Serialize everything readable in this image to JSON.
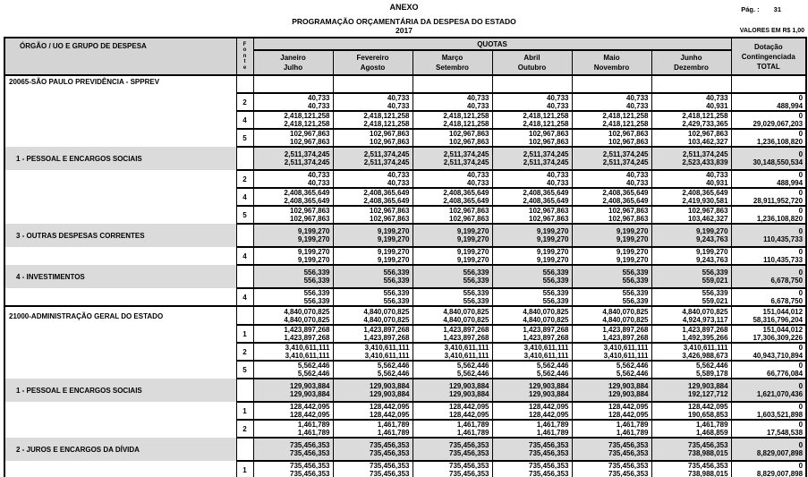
{
  "page": {
    "anexo": "ANEXO",
    "page_label": "Pág. :",
    "page_number": "31",
    "title": "PROGRAMAÇÃO ORÇAMENTÁRIA DA DESPESA DO ESTADO",
    "year": "2017",
    "values_note": "VALORES EM R$ 1,00"
  },
  "colors": {
    "header_gray": "#d4d4d4",
    "group_row_gray": "#dbdbdb",
    "border": "#000000"
  },
  "table": {
    "col_orgao": "ÓRGÃO / UO  E GRUPO DE DESPESA",
    "fonte_vertical": "F\no\nn\nt\ne",
    "quotas_label": "QUOTAS",
    "month_columns": [
      "Janeiro\nJulho",
      "Fevereiro\nAgosto",
      "Março\nSetembro",
      "Abril\nOutubro",
      "Maio\nNovembro",
      "Junho\nDezembro"
    ],
    "dotacao_header": "Dotação\nContingenciada\nTOTAL",
    "rows": [
      {
        "type": "org",
        "label": "20065-SÃO PAULO PREVIDÊNCIA - SPPREV",
        "fonte": "",
        "line1": [
          "",
          "",
          "",
          "",
          "",
          "",
          ""
        ],
        "line2": [
          "",
          "",
          "",
          "",
          "",
          "",
          ""
        ]
      },
      {
        "type": "data",
        "label": "",
        "fonte": "2",
        "line1": [
          "40,733",
          "40,733",
          "40,733",
          "40,733",
          "40,733",
          "40,733",
          "0"
        ],
        "line2": [
          "40,733",
          "40,733",
          "40,733",
          "40,733",
          "40,733",
          "40,931",
          "488,994"
        ]
      },
      {
        "type": "data",
        "label": "",
        "fonte": "4",
        "line1": [
          "2,418,121,258",
          "2,418,121,258",
          "2,418,121,258",
          "2,418,121,258",
          "2,418,121,258",
          "2,418,121,258",
          "0"
        ],
        "line2": [
          "2,418,121,258",
          "2,418,121,258",
          "2,418,121,258",
          "2,418,121,258",
          "2,418,121,258",
          "2,429,733,365",
          "29,029,067,203"
        ]
      },
      {
        "type": "data",
        "label": "",
        "fonte": "5",
        "line1": [
          "102,967,863",
          "102,967,863",
          "102,967,863",
          "102,967,863",
          "102,967,863",
          "102,967,863",
          "0"
        ],
        "line2": [
          "102,967,863",
          "102,967,863",
          "102,967,863",
          "102,967,863",
          "102,967,863",
          "103,462,327",
          "1,236,108,820"
        ]
      },
      {
        "type": "group",
        "label": "1 - PESSOAL E ENCARGOS SOCIAIS",
        "fonte": "",
        "line1": [
          "2,511,374,245",
          "2,511,374,245",
          "2,511,374,245",
          "2,511,374,245",
          "2,511,374,245",
          "2,511,374,245",
          "0"
        ],
        "line2": [
          "2,511,374,245",
          "2,511,374,245",
          "2,511,374,245",
          "2,511,374,245",
          "2,511,374,245",
          "2,523,433,839",
          "30,148,550,534"
        ]
      },
      {
        "type": "data",
        "label": "",
        "fonte": "2",
        "line1": [
          "40,733",
          "40,733",
          "40,733",
          "40,733",
          "40,733",
          "40,733",
          "0"
        ],
        "line2": [
          "40,733",
          "40,733",
          "40,733",
          "40,733",
          "40,733",
          "40,931",
          "488,994"
        ]
      },
      {
        "type": "data",
        "label": "",
        "fonte": "4",
        "line1": [
          "2,408,365,649",
          "2,408,365,649",
          "2,408,365,649",
          "2,408,365,649",
          "2,408,365,649",
          "2,408,365,649",
          "0"
        ],
        "line2": [
          "2,408,365,649",
          "2,408,365,649",
          "2,408,365,649",
          "2,408,365,649",
          "2,408,365,649",
          "2,419,930,581",
          "28,911,952,720"
        ]
      },
      {
        "type": "data",
        "label": "",
        "fonte": "5",
        "line1": [
          "102,967,863",
          "102,967,863",
          "102,967,863",
          "102,967,863",
          "102,967,863",
          "102,967,863",
          "0"
        ],
        "line2": [
          "102,967,863",
          "102,967,863",
          "102,967,863",
          "102,967,863",
          "102,967,863",
          "103,462,327",
          "1,236,108,820"
        ]
      },
      {
        "type": "group",
        "label": "3 - OUTRAS DESPESAS CORRENTES",
        "fonte": "",
        "line1": [
          "9,199,270",
          "9,199,270",
          "9,199,270",
          "9,199,270",
          "9,199,270",
          "9,199,270",
          "0"
        ],
        "line2": [
          "9,199,270",
          "9,199,270",
          "9,199,270",
          "9,199,270",
          "9,199,270",
          "9,243,763",
          "110,435,733"
        ]
      },
      {
        "type": "data",
        "label": "",
        "fonte": "4",
        "line1": [
          "9,199,270",
          "9,199,270",
          "9,199,270",
          "9,199,270",
          "9,199,270",
          "9,199,270",
          "0"
        ],
        "line2": [
          "9,199,270",
          "9,199,270",
          "9,199,270",
          "9,199,270",
          "9,199,270",
          "9,243,763",
          "110,435,733"
        ]
      },
      {
        "type": "group",
        "label": "4 - INVESTIMENTOS",
        "fonte": "",
        "line1": [
          "556,339",
          "556,339",
          "556,339",
          "556,339",
          "556,339",
          "556,339",
          "0"
        ],
        "line2": [
          "556,339",
          "556,339",
          "556,339",
          "556,339",
          "556,339",
          "559,021",
          "6,678,750"
        ]
      },
      {
        "type": "data",
        "label": "",
        "fonte": "4",
        "line1": [
          "556,339",
          "556,339",
          "556,339",
          "556,339",
          "556,339",
          "556,339",
          "0"
        ],
        "line2": [
          "556,339",
          "556,339",
          "556,339",
          "556,339",
          "556,339",
          "559,021",
          "6,678,750"
        ]
      },
      {
        "type": "orgtotal",
        "label": "21000-ADMINISTRAÇÃO GERAL DO ESTADO",
        "fonte": "",
        "line1": [
          "4,840,070,825",
          "4,840,070,825",
          "4,840,070,825",
          "4,840,070,825",
          "4,840,070,825",
          "4,840,070,825",
          "151,044,012"
        ],
        "line2": [
          "4,840,070,825",
          "4,840,070,825",
          "4,840,070,825",
          "4,840,070,825",
          "4,840,070,825",
          "4,924,973,117",
          "58,316,796,204"
        ]
      },
      {
        "type": "data",
        "label": "",
        "fonte": "1",
        "line1": [
          "1,423,897,268",
          "1,423,897,268",
          "1,423,897,268",
          "1,423,897,268",
          "1,423,897,268",
          "1,423,897,268",
          "151,044,012"
        ],
        "line2": [
          "1,423,897,268",
          "1,423,897,268",
          "1,423,897,268",
          "1,423,897,268",
          "1,423,897,268",
          "1,492,395,266",
          "17,306,309,226"
        ]
      },
      {
        "type": "data",
        "label": "",
        "fonte": "2",
        "line1": [
          "3,410,611,111",
          "3,410,611,111",
          "3,410,611,111",
          "3,410,611,111",
          "3,410,611,111",
          "3,410,611,111",
          "0"
        ],
        "line2": [
          "3,410,611,111",
          "3,410,611,111",
          "3,410,611,111",
          "3,410,611,111",
          "3,410,611,111",
          "3,426,988,673",
          "40,943,710,894"
        ]
      },
      {
        "type": "data",
        "label": "",
        "fonte": "5",
        "line1": [
          "5,562,446",
          "5,562,446",
          "5,562,446",
          "5,562,446",
          "5,562,446",
          "5,562,446",
          "0"
        ],
        "line2": [
          "5,562,446",
          "5,562,446",
          "5,562,446",
          "5,562,446",
          "5,562,446",
          "5,589,178",
          "66,776,084"
        ]
      },
      {
        "type": "group",
        "label": "1 - PESSOAL E ENCARGOS SOCIAIS",
        "fonte": "",
        "line1": [
          "129,903,884",
          "129,903,884",
          "129,903,884",
          "129,903,884",
          "129,903,884",
          "129,903,884",
          "0"
        ],
        "line2": [
          "129,903,884",
          "129,903,884",
          "129,903,884",
          "129,903,884",
          "129,903,884",
          "192,127,712",
          "1,621,070,436"
        ]
      },
      {
        "type": "data",
        "label": "",
        "fonte": "1",
        "line1": [
          "128,442,095",
          "128,442,095",
          "128,442,095",
          "128,442,095",
          "128,442,095",
          "128,442,095",
          "0"
        ],
        "line2": [
          "128,442,095",
          "128,442,095",
          "128,442,095",
          "128,442,095",
          "128,442,095",
          "190,658,853",
          "1,603,521,898"
        ]
      },
      {
        "type": "data",
        "label": "",
        "fonte": "2",
        "line1": [
          "1,461,789",
          "1,461,789",
          "1,461,789",
          "1,461,789",
          "1,461,789",
          "1,461,789",
          "0"
        ],
        "line2": [
          "1,461,789",
          "1,461,789",
          "1,461,789",
          "1,461,789",
          "1,461,789",
          "1,468,859",
          "17,548,538"
        ]
      },
      {
        "type": "group",
        "label": "2 - JUROS E ENCARGOS DA DÍVIDA",
        "fonte": "",
        "line1": [
          "735,456,353",
          "735,456,353",
          "735,456,353",
          "735,456,353",
          "735,456,353",
          "735,456,353",
          "0"
        ],
        "line2": [
          "735,456,353",
          "735,456,353",
          "735,456,353",
          "735,456,353",
          "735,456,353",
          "738,988,015",
          "8,829,007,898"
        ]
      },
      {
        "type": "data",
        "label": "",
        "fonte": "1",
        "line1": [
          "735,456,353",
          "735,456,353",
          "735,456,353",
          "735,456,353",
          "735,456,353",
          "735,456,353",
          "0"
        ],
        "line2": [
          "735,456,353",
          "735,456,353",
          "735,456,353",
          "735,456,353",
          "735,456,353",
          "738,988,015",
          "8,829,007,898"
        ]
      }
    ]
  }
}
